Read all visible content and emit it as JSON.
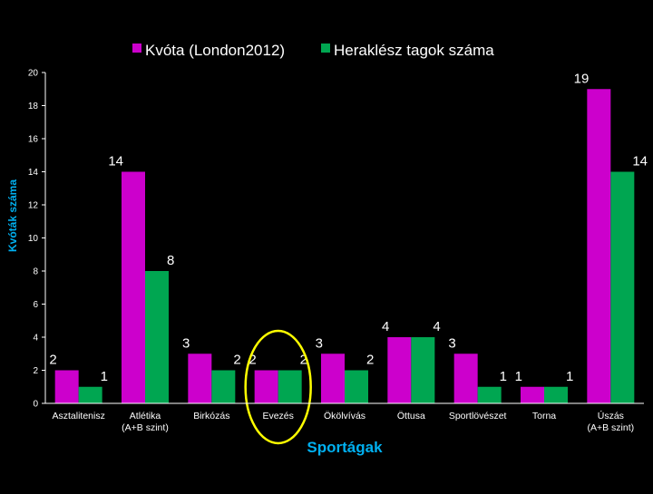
{
  "chart_data": {
    "type": "bar",
    "title": "",
    "xlabel": "Sportágak",
    "ylabel": "Kvóták száma",
    "ylim": [
      0,
      20
    ],
    "yticks": [
      0,
      2,
      4,
      6,
      8,
      10,
      12,
      14,
      16,
      18,
      20
    ],
    "grid": false,
    "legend_position": "top-center",
    "categories": [
      [
        "Asztalitenisz"
      ],
      [
        "Atlétika",
        "(A+B szint)"
      ],
      [
        "Birkózás"
      ],
      [
        "Evezés"
      ],
      [
        "Ökölvívás"
      ],
      [
        "Öttusa"
      ],
      [
        "Sportlövészet"
      ],
      [
        "Torna"
      ],
      [
        "Úszás",
        "(A+B szint)"
      ]
    ],
    "series": [
      {
        "name": "Kvóta (London2012)",
        "color": "#CC00CC",
        "values": [
          2,
          14,
          3,
          2,
          3,
          4,
          3,
          1,
          19
        ]
      },
      {
        "name": "Heraklész tagok száma",
        "color": "#00A651",
        "values": [
          1,
          8,
          2,
          2,
          2,
          4,
          1,
          1,
          14
        ]
      }
    ],
    "annotation": {
      "type": "ellipse",
      "category": "Evezés",
      "color": "#FFFF00"
    }
  }
}
